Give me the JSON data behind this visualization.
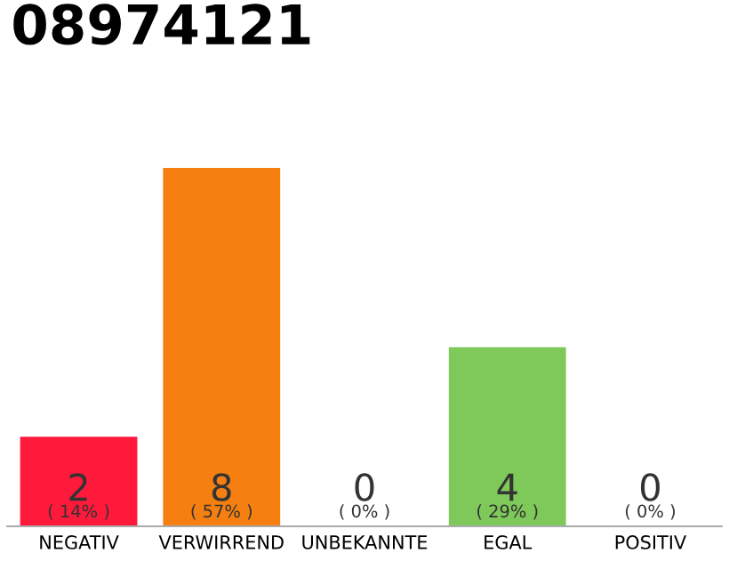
{
  "chart_data": {
    "type": "bar",
    "title": "08974121",
    "categories": [
      "NEGATIV",
      "VERWIRREND",
      "UNBEKANNTE",
      "EGAL",
      "POSITIV"
    ],
    "values": [
      2,
      8,
      0,
      4,
      0
    ],
    "colors": [
      "#ff1a3c",
      "#f57f10",
      "#cccccc",
      "#7ec95a",
      "#cccccc"
    ],
    "value_labels": [
      "2\n( 14% )",
      "8\n( 57% )",
      "0\n( 0% )",
      "4\n( 29% )",
      "0\n( 0% )"
    ],
    "grid": false,
    "legend": false
  }
}
